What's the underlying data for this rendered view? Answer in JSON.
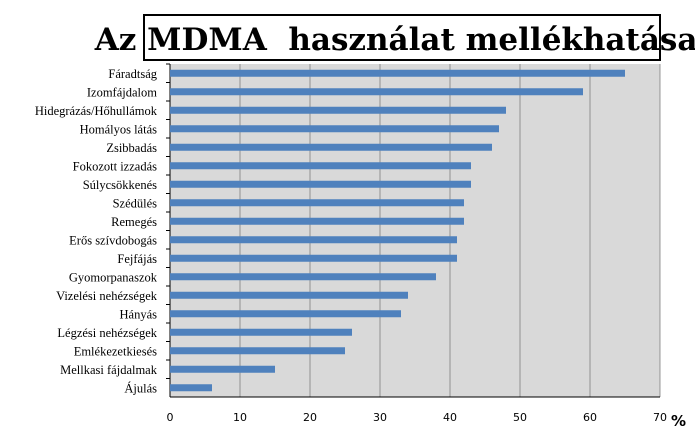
{
  "chart_data": {
    "type": "bar",
    "orientation": "horizontal",
    "title": "Az MDMA  használat mellékhatásai",
    "xlabel": "%",
    "ylabel": "",
    "xlim": [
      0,
      70
    ],
    "xticks": [
      0,
      10,
      20,
      30,
      40,
      50,
      60,
      70
    ],
    "grid": true,
    "legend": "none",
    "categories": [
      "Fáradtság",
      "Izomfájdalom",
      "Hidegrázás/Hőhullámok",
      "Homályos látás",
      "Zsibbadás",
      "Fokozott izzadás",
      "Súlycsökkenés",
      "Szédülés",
      "Remegés",
      "Erős szívdobogás",
      "Fejfájás",
      "Gyomorpanaszok",
      "Vizelési nehézségek",
      "Hányás",
      "Légzési nehézségek",
      "Emlékezetkiesés",
      "Mellkasi fájdalmak",
      "Ájulás"
    ],
    "values": [
      65,
      59,
      48,
      47,
      46,
      43,
      43,
      42,
      42,
      41,
      41,
      38,
      34,
      33,
      26,
      25,
      15,
      6
    ],
    "colors": {
      "bar": "#4f81bd",
      "plot_background": "#d9d9d9",
      "gridline": "#7f7f7f"
    }
  }
}
